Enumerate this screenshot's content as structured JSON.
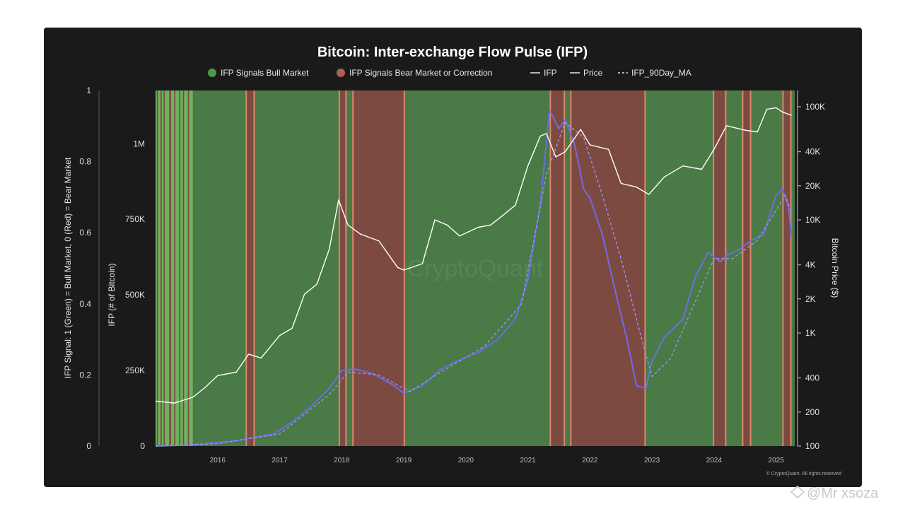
{
  "colors": {
    "background": "#1a1a1a",
    "bull": "#4a7a45",
    "bull_bright": "#6db35f",
    "bear": "#7d4a42",
    "bear_edge": "#d98a6c",
    "ifp_line": "#6f6ce6",
    "ma_line": "#9b98f0",
    "price_line": "#ffffff"
  },
  "watermark": "CryptoQuant",
  "footnote": "© CryptoQuant. All rights reserved",
  "credit": "@Mr xsoza",
  "chart_data": {
    "type": "line",
    "title": "Bitcoin: Inter-exchange Flow Pulse (IFP)",
    "legend": [
      {
        "label": "IFP Signals Bull Market",
        "marker": "dot",
        "color": "#4a9a4a"
      },
      {
        "label": "IFP Signals Bear Market or Correction",
        "marker": "dot",
        "color": "#b06050"
      },
      {
        "label": "IFP",
        "marker": "line"
      },
      {
        "label": "Price",
        "marker": "line"
      },
      {
        "label": "IFP_90Day_MA",
        "marker": "dash"
      }
    ],
    "legend_position": "top-center",
    "grid": false,
    "xlim": [
      2015.0,
      2025.3
    ],
    "x_ticks": [
      "2016",
      "2017",
      "2018",
      "2019",
      "2020",
      "2021",
      "2022",
      "2023",
      "2024",
      "2025"
    ],
    "axes": {
      "signal": {
        "label": "IFP Signal: 1 (Green) = Bull Market, 0 (Red) = Bear Market",
        "ylim": [
          0,
          1
        ],
        "ticks": [
          "0",
          "0.2",
          "0.4",
          "0.6",
          "0.8",
          "1"
        ]
      },
      "ifp": {
        "label": "IFP (# of Bitcoin)",
        "ylim": [
          0,
          1176000
        ],
        "ticks": [
          "0",
          "250K",
          "500K",
          "750K",
          "1M"
        ]
      },
      "price": {
        "label": "Bitcoin Price ($)",
        "scale": "log",
        "ylim": [
          100,
          150000
        ],
        "ticks": [
          "100",
          "200",
          "400",
          "1K",
          "2K",
          "4K",
          "10K",
          "20K",
          "40K",
          "100K"
        ]
      }
    },
    "bear_regions": [
      [
        2015.02,
        2015.04
      ],
      [
        2015.08,
        2015.1
      ],
      [
        2015.13,
        2015.15
      ],
      [
        2015.22,
        2015.25
      ],
      [
        2015.3,
        2015.32
      ],
      [
        2015.38,
        2015.4
      ],
      [
        2015.44,
        2015.46
      ],
      [
        2015.52,
        2015.54
      ],
      [
        2016.45,
        2016.6
      ],
      [
        2017.95,
        2018.08
      ],
      [
        2018.17,
        2019.02
      ],
      [
        2021.35,
        2021.6
      ],
      [
        2021.68,
        2022.9
      ],
      [
        2023.98,
        2024.2
      ],
      [
        2024.45,
        2024.6
      ],
      [
        2025.1,
        2025.25
      ]
    ],
    "series": [
      {
        "name": "IFP",
        "axis": "ifp",
        "x": [
          2015.0,
          2015.5,
          2016.0,
          2016.3,
          2016.6,
          2016.9,
          2017.2,
          2017.5,
          2017.8,
          2018.0,
          2018.2,
          2018.5,
          2018.8,
          2019.0,
          2019.3,
          2019.6,
          2019.9,
          2020.2,
          2020.5,
          2020.8,
          2021.0,
          2021.2,
          2021.35,
          2021.5,
          2021.6,
          2021.75,
          2021.9,
          2022.0,
          2022.2,
          2022.4,
          2022.6,
          2022.75,
          2022.9,
          2023.0,
          2023.2,
          2023.5,
          2023.7,
          2023.9,
          2024.1,
          2024.2,
          2024.4,
          2024.6,
          2024.8,
          2025.0,
          2025.1,
          2025.2,
          2025.25
        ],
        "values": [
          0,
          3000,
          12000,
          18000,
          30000,
          40000,
          80000,
          130000,
          190000,
          250000,
          255000,
          240000,
          205000,
          175000,
          200000,
          255000,
          285000,
          310000,
          350000,
          420000,
          550000,
          800000,
          1110000,
          1050000,
          1080000,
          1000000,
          850000,
          820000,
          700000,
          520000,
          350000,
          200000,
          190000,
          280000,
          360000,
          420000,
          560000,
          640000,
          610000,
          630000,
          650000,
          680000,
          700000,
          830000,
          850000,
          790000,
          690000
        ]
      },
      {
        "name": "IFP_90Day_MA",
        "axis": "ifp",
        "x": [
          2015.0,
          2016.0,
          2017.0,
          2017.8,
          2018.1,
          2018.6,
          2019.1,
          2019.6,
          2020.3,
          2020.9,
          2021.3,
          2021.6,
          2021.9,
          2022.2,
          2022.5,
          2022.8,
          2023.0,
          2023.3,
          2023.7,
          2024.0,
          2024.3,
          2024.7,
          2025.0,
          2025.15,
          2025.25
        ],
        "values": [
          0,
          8000,
          40000,
          170000,
          245000,
          235000,
          180000,
          245000,
          330000,
          470000,
          900000,
          1070000,
          1020000,
          830000,
          620000,
          380000,
          230000,
          290000,
          480000,
          620000,
          620000,
          680000,
          780000,
          830000,
          770000
        ]
      },
      {
        "name": "Price",
        "axis": "price",
        "x": [
          2015.0,
          2015.3,
          2015.6,
          2015.8,
          2016.0,
          2016.3,
          2016.5,
          2016.7,
          2017.0,
          2017.2,
          2017.4,
          2017.6,
          2017.8,
          2017.95,
          2018.1,
          2018.3,
          2018.6,
          2018.9,
          2019.0,
          2019.3,
          2019.5,
          2019.7,
          2019.9,
          2020.2,
          2020.4,
          2020.6,
          2020.8,
          2021.0,
          2021.2,
          2021.3,
          2021.45,
          2021.6,
          2021.85,
          2022.0,
          2022.3,
          2022.5,
          2022.75,
          2022.95,
          2023.2,
          2023.5,
          2023.8,
          2024.0,
          2024.2,
          2024.5,
          2024.7,
          2024.85,
          2025.0,
          2025.1,
          2025.25
        ],
        "values": [
          250,
          240,
          270,
          330,
          420,
          450,
          650,
          600,
          950,
          1100,
          2200,
          2700,
          5500,
          15000,
          9000,
          7500,
          6500,
          3800,
          3600,
          4100,
          10000,
          9000,
          7200,
          8600,
          9000,
          11000,
          13500,
          30000,
          55000,
          58000,
          36000,
          40000,
          63000,
          46000,
          42000,
          21000,
          19500,
          16800,
          24000,
          30000,
          28000,
          42000,
          68000,
          62000,
          60000,
          95000,
          98000,
          90000,
          84000
        ]
      }
    ]
  }
}
